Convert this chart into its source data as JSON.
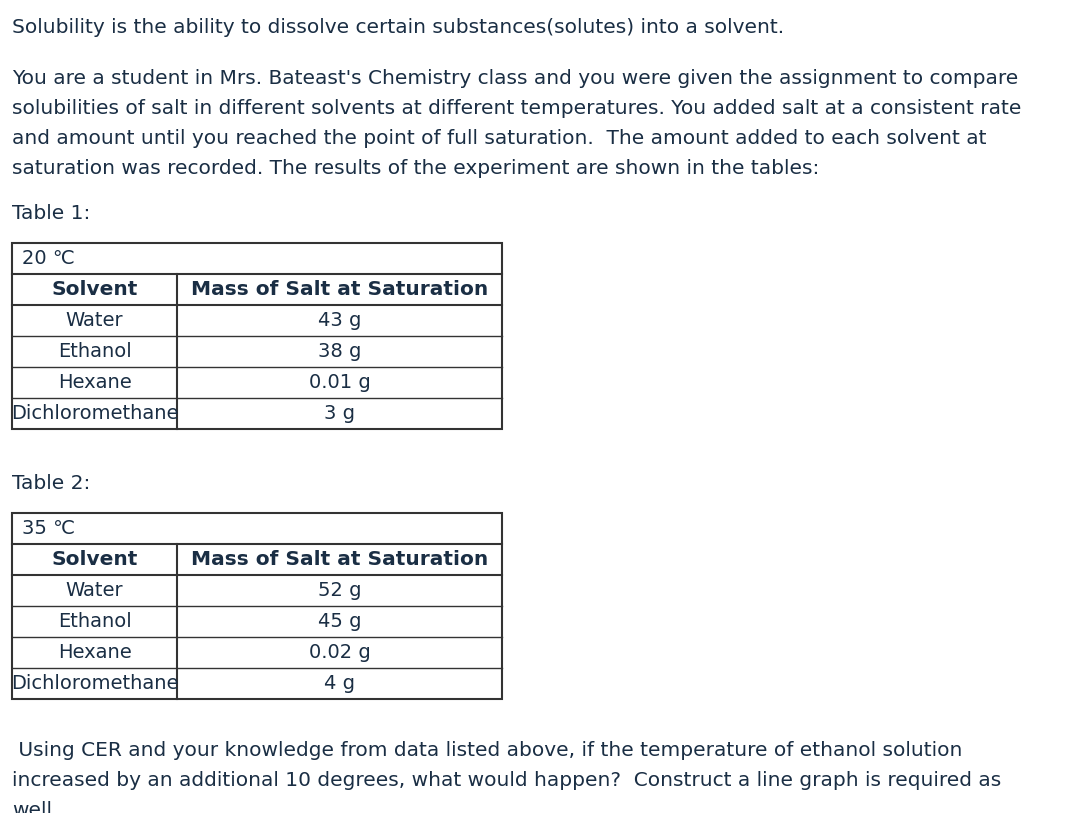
{
  "intro_line1": "Solubility is the ability to dissolve certain substances(solutes) into a solvent.",
  "intro_line2": "You are a student in Mrs. Bateast's Chemistry class and you were given the assignment to compare",
  "intro_line3": "solubilities of salt in different solvents at different temperatures. You added salt at a consistent rate",
  "intro_line4": "and amount until you reached the point of full saturation.  The amount added to each solvent at",
  "intro_line5": "saturation was recorded. The results of the experiment are shown in the tables:",
  "table1_label": "Table 1:",
  "table1_temp": "20 ℃",
  "table1_col1": "Solvent",
  "table1_col2": "Mass of Salt at Saturation",
  "table1_rows": [
    [
      "Water",
      "43 g"
    ],
    [
      "Ethanol",
      "38 g"
    ],
    [
      "Hexane",
      "0.01 g"
    ],
    [
      "Dichloromethane",
      "3 g"
    ]
  ],
  "table2_label": "Table 2:",
  "table2_temp": "35 ℃",
  "table2_col1": "Solvent",
  "table2_col2": "Mass of Salt at Saturation",
  "table2_rows": [
    [
      "Water",
      "52 g"
    ],
    [
      "Ethanol",
      "45 g"
    ],
    [
      "Hexane",
      "0.02 g"
    ],
    [
      "Dichloromethane",
      "4 g"
    ]
  ],
  "question_line1": " Using CER and your knowledge from data listed above, if the temperature of ethanol solution",
  "question_line2": "increased by an additional 10 degrees, what would happen?  Construct a line graph is required as",
  "question_line3": "well.",
  "bg_color": "#ffffff",
  "text_color": "#1a2e44",
  "font_size_body": 14.5,
  "font_size_table": 14.0,
  "font_size_table_header": 14.5
}
